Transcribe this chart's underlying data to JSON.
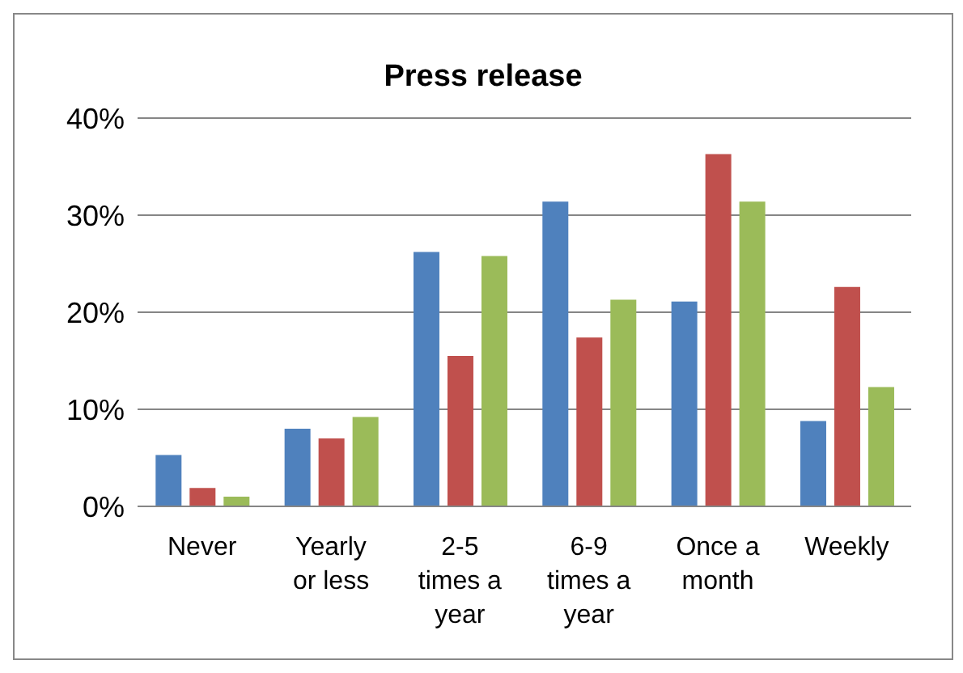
{
  "chart_data": {
    "type": "bar",
    "title": "Press release",
    "categories": [
      "Never",
      "Yearly or less",
      "2-5 times a year",
      "6-9 times a year",
      "Once a month",
      "Weekly"
    ],
    "series": [
      {
        "color": "#4f81bd",
        "values": [
          5.3,
          8.0,
          26.2,
          31.4,
          21.1,
          8.8
        ]
      },
      {
        "color": "#c0504d",
        "values": [
          1.9,
          7.0,
          15.5,
          17.4,
          36.3,
          22.6
        ]
      },
      {
        "color": "#9bbb59",
        "values": [
          1.0,
          9.2,
          25.8,
          21.3,
          31.4,
          12.3
        ]
      }
    ],
    "ylim": [
      0,
      40
    ],
    "yticks": [
      {
        "value": 0,
        "label": "0%"
      },
      {
        "value": 10,
        "label": "10%"
      },
      {
        "value": 20,
        "label": "20%"
      },
      {
        "value": 30,
        "label": "30%"
      },
      {
        "value": 40,
        "label": "40%"
      }
    ],
    "grid": "y",
    "legend": false
  }
}
